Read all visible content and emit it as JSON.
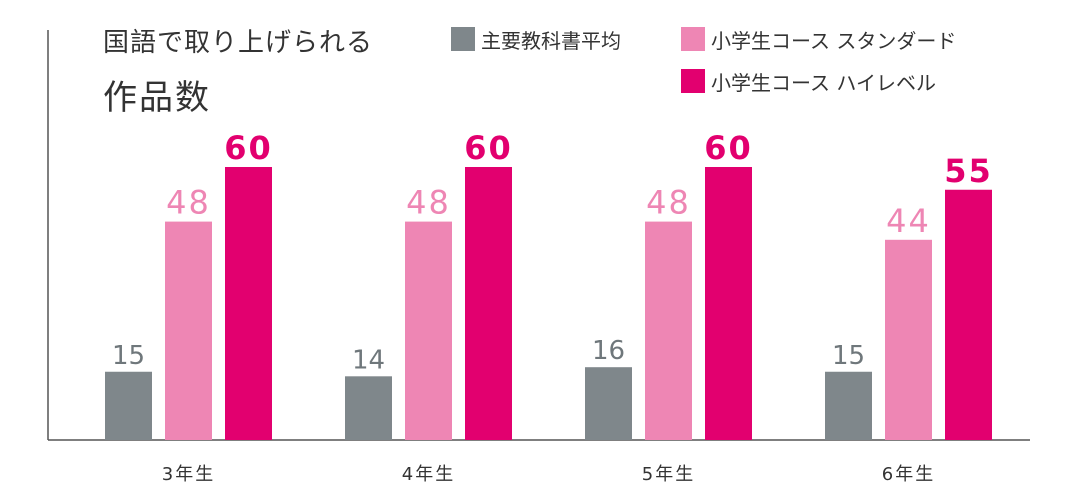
{
  "title_lines": [
    "国語で取り上げられる",
    "作品数"
  ],
  "colors": {
    "textbook": "#7f878b",
    "standard": "#ee86b4",
    "highlevel": "#e2006f",
    "axis": "#555555",
    "value_label_textbook": "#6f777b"
  },
  "legend": [
    {
      "label": "主要教科書平均",
      "color": "#7f878b"
    },
    {
      "label": "小学生コース スタンダード",
      "color": "#ee86b4"
    },
    {
      "label": "小学生コース ハイレベル",
      "color": "#e2006f"
    }
  ],
  "chart_data": {
    "type": "bar",
    "title": "国語で取り上げられる作品数",
    "categories": [
      "3年生",
      "4年生",
      "5年生",
      "6年生"
    ],
    "series": [
      {
        "name": "主要教科書平均",
        "values": [
          15,
          14,
          16,
          15
        ]
      },
      {
        "name": "小学生コース スタンダード",
        "values": [
          48,
          48,
          48,
          44
        ]
      },
      {
        "name": "小学生コース ハイレベル",
        "values": [
          60,
          60,
          60,
          55
        ]
      }
    ],
    "ylim": [
      0,
      60
    ],
    "grid": false,
    "legend_position": "top-right"
  }
}
